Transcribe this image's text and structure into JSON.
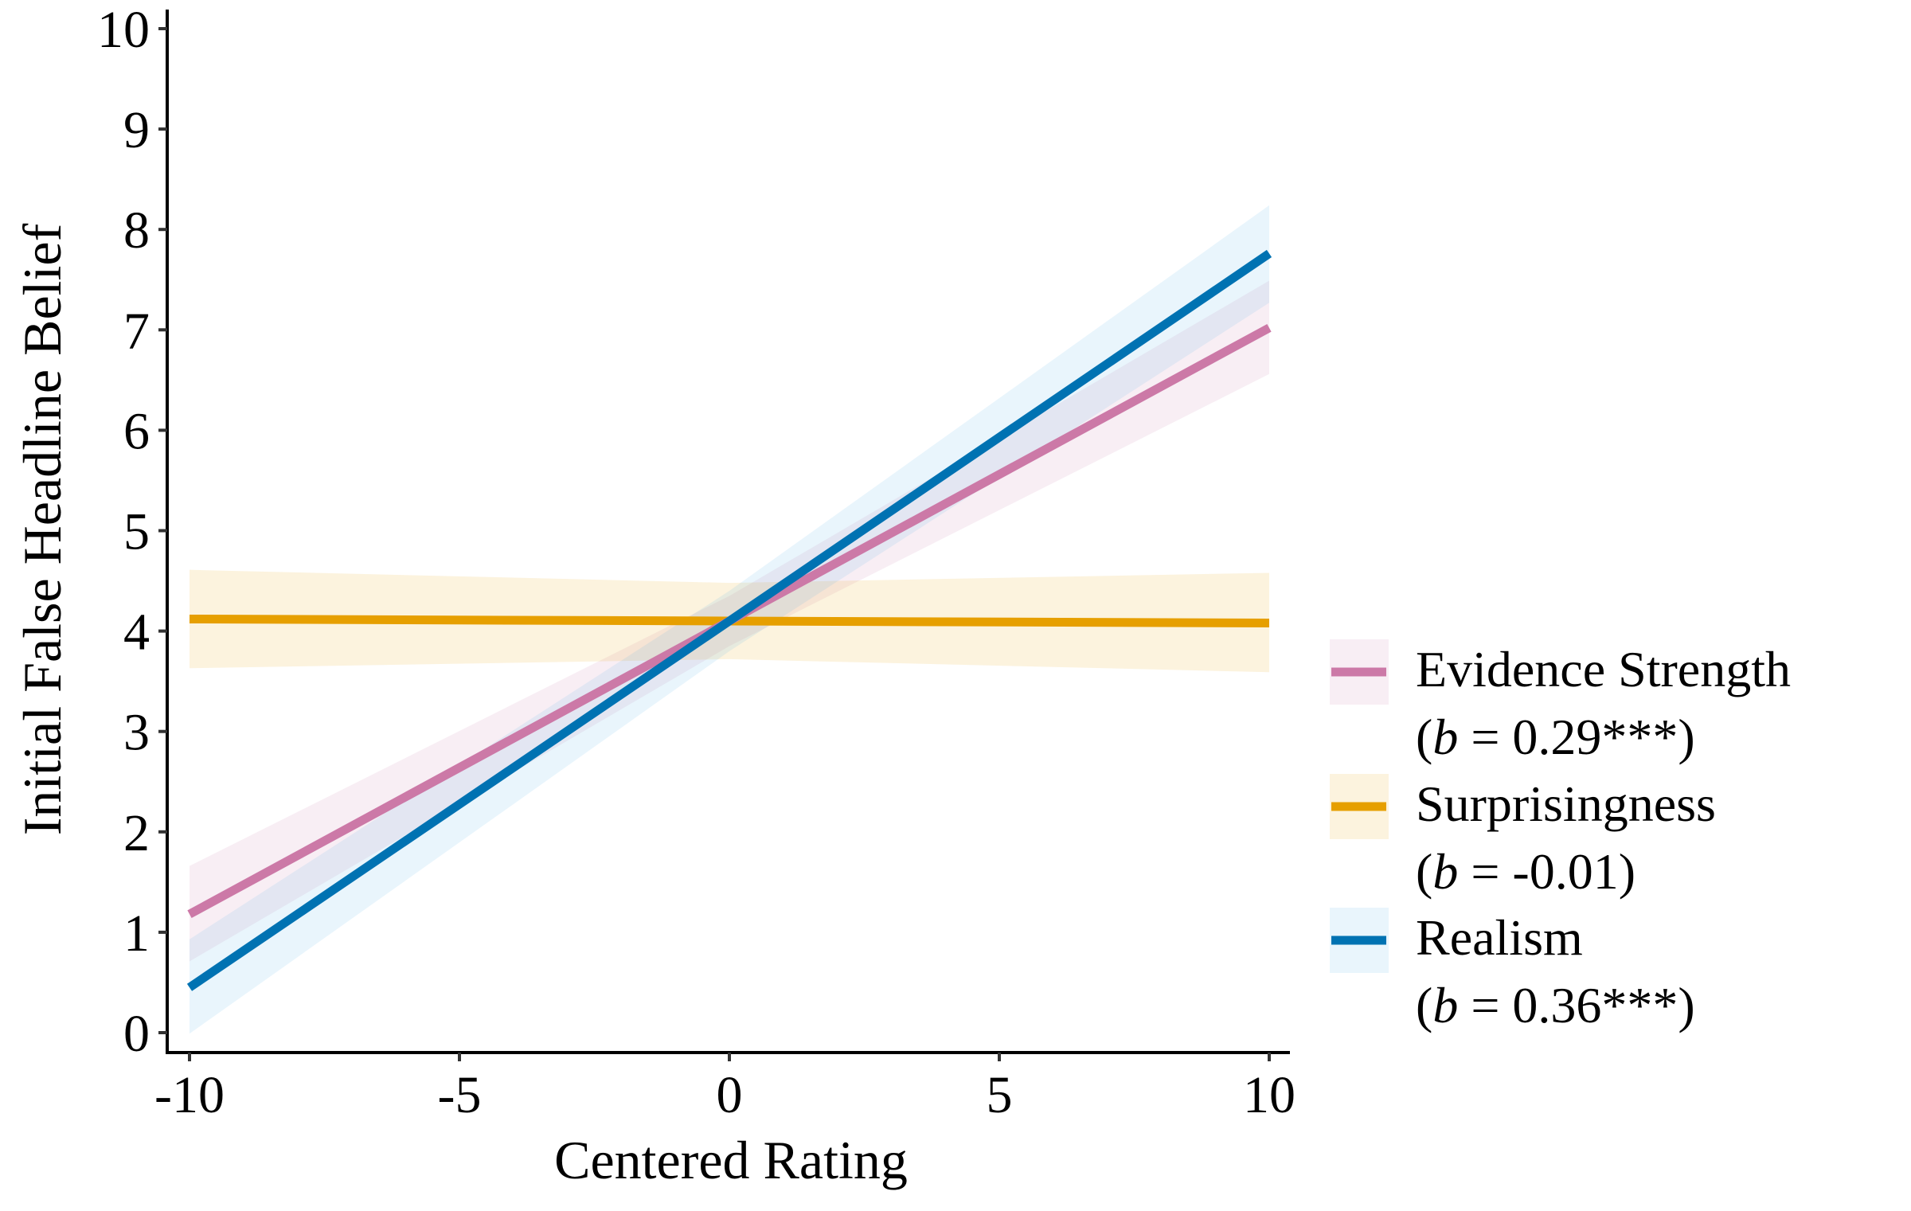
{
  "chart_data": {
    "type": "line",
    "title": "",
    "xlabel": "Centered Rating",
    "ylabel": "Initial False Headline Belief",
    "xlim": [
      -10,
      10
    ],
    "ylim": [
      0,
      10
    ],
    "xticks": [
      -10,
      -5,
      0,
      5,
      10
    ],
    "xtick_labels": [
      "-10",
      "-5",
      "0",
      "5",
      "10"
    ],
    "yticks": [
      0,
      1,
      2,
      3,
      4,
      5,
      6,
      7,
      8,
      9,
      10
    ],
    "ytick_labels": [
      "0",
      "1",
      "2",
      "3",
      "4",
      "5",
      "6",
      "7",
      "8",
      "9",
      "10"
    ],
    "grid": false,
    "legend_position": "right",
    "series": [
      {
        "name": "Evidence Strength",
        "stat_prefix": "(",
        "stat_var": "b",
        "stat_text": " = 0.29***)",
        "color": "#cc79a7",
        "ribbon_color": "#cc79a7",
        "x": [
          -10,
          0,
          10
        ],
        "y": [
          1.18,
          4.1,
          7.02
        ],
        "ci_lower": [
          0.71,
          3.85,
          6.56
        ],
        "ci_upper": [
          1.66,
          4.35,
          7.49
        ]
      },
      {
        "name": "Surprisingness",
        "stat_prefix": "(",
        "stat_var": "b",
        "stat_text": " = -0.01)",
        "color": "#e69f00",
        "ribbon_color": "#e69f00",
        "x": [
          -10,
          0,
          10
        ],
        "y": [
          4.12,
          4.1,
          4.08
        ],
        "ci_lower": [
          3.63,
          3.72,
          3.59
        ],
        "ci_upper": [
          4.61,
          4.48,
          4.58
        ]
      },
      {
        "name": "Realism",
        "stat_prefix": "(",
        "stat_var": "b",
        "stat_text": " = 0.36***)",
        "color": "#0072b2",
        "ribbon_color": "#56b4e9",
        "x": [
          -10,
          0,
          10
        ],
        "y": [
          0.45,
          4.1,
          7.76
        ],
        "ci_lower": [
          -0.01,
          3.8,
          7.27
        ],
        "ci_upper": [
          0.93,
          4.4,
          8.24
        ]
      }
    ]
  }
}
